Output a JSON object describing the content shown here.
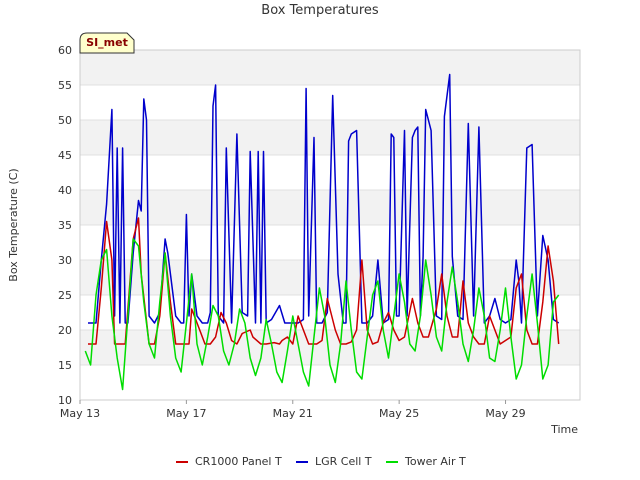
{
  "chart_data": {
    "type": "line",
    "title": "Box Temperatures",
    "xlabel": "Time",
    "ylabel": "Box Temperature (C)",
    "ylim": [
      10,
      60
    ],
    "yticks": [
      10,
      15,
      20,
      25,
      30,
      35,
      40,
      45,
      50,
      55,
      60
    ],
    "xlim": [
      13,
      31.8
    ],
    "xticks": [
      {
        "value": 13,
        "label": "May 13"
      },
      {
        "value": 17,
        "label": "May 17"
      },
      {
        "value": 21,
        "label": "May 21"
      },
      {
        "value": 25,
        "label": "May 25"
      },
      {
        "value": 29,
        "label": "May 29"
      }
    ],
    "grid": "horizontal bands",
    "legend_position": "bottom",
    "site_badge": "SI_met",
    "series": [
      {
        "name": "CR1000 Panel T",
        "color": "#cc0000",
        "x": [
          13.3,
          13.6,
          13.8,
          14.0,
          14.2,
          14.3,
          14.5,
          14.7,
          15.0,
          15.2,
          15.3,
          15.6,
          15.8,
          16.0,
          16.2,
          16.4,
          16.6,
          16.9,
          17.1,
          17.2,
          17.5,
          17.7,
          17.9,
          18.1,
          18.3,
          18.5,
          18.7,
          18.9,
          19.1,
          19.4,
          19.5,
          19.8,
          20.0,
          20.3,
          20.5,
          20.6,
          20.8,
          21.0,
          21.2,
          21.4,
          21.6,
          21.9,
          22.1,
          22.3,
          22.6,
          22.8,
          23.0,
          23.2,
          23.4,
          23.6,
          23.8,
          24.0,
          24.2,
          24.4,
          24.6,
          24.8,
          25.0,
          25.2,
          25.5,
          25.7,
          25.9,
          26.1,
          26.4,
          26.6,
          26.8,
          27.0,
          27.2,
          27.4,
          27.6,
          27.8,
          28.0,
          28.2,
          28.4,
          28.6,
          28.8,
          29.0,
          29.2,
          29.4,
          29.6,
          29.8,
          30.0,
          30.2,
          30.4,
          30.6,
          30.8,
          31.0
        ],
        "y": [
          18.0,
          18.0,
          26.0,
          35.5,
          30.0,
          18.0,
          18.0,
          18.0,
          33.0,
          36.0,
          28.0,
          18.0,
          18.0,
          22.0,
          31.0,
          24.0,
          18.0,
          18.0,
          18.0,
          23.0,
          20.0,
          18.0,
          18.0,
          19.0,
          22.5,
          21.0,
          18.5,
          18.0,
          19.5,
          20.0,
          19.0,
          18.0,
          18.0,
          18.2,
          18.0,
          18.5,
          19.0,
          18.0,
          22.0,
          20.0,
          18.0,
          18.0,
          18.5,
          24.5,
          20.0,
          18.0,
          18.0,
          18.3,
          20.0,
          30.0,
          20.0,
          18.0,
          18.3,
          21.0,
          22.5,
          20.0,
          18.5,
          19.0,
          24.5,
          21.0,
          19.0,
          19.0,
          23.0,
          28.0,
          22.0,
          19.0,
          19.0,
          27.0,
          21.0,
          19.0,
          18.0,
          18.0,
          22.0,
          20.0,
          18.0,
          18.5,
          19.0,
          26.0,
          28.0,
          20.0,
          18.0,
          18.0,
          24.0,
          32.0,
          27.0,
          18.0
        ]
      },
      {
        "name": "LGR Cell T",
        "color": "#0000cc",
        "x": [
          13.3,
          13.6,
          13.8,
          14.0,
          14.2,
          14.3,
          14.4,
          14.5,
          14.6,
          14.7,
          14.8,
          15.0,
          15.2,
          15.3,
          15.4,
          15.5,
          15.6,
          15.8,
          16.0,
          16.2,
          16.3,
          16.6,
          16.8,
          16.9,
          17.0,
          17.1,
          17.2,
          17.4,
          17.6,
          17.8,
          17.9,
          18.0,
          18.1,
          18.2,
          18.4,
          18.5,
          18.7,
          18.9,
          19.1,
          19.3,
          19.4,
          19.6,
          19.7,
          19.8,
          19.9,
          20.0,
          20.2,
          20.5,
          20.7,
          21.0,
          21.2,
          21.4,
          21.5,
          21.6,
          21.8,
          21.9,
          22.1,
          22.3,
          22.5,
          22.7,
          22.9,
          23.0,
          23.1,
          23.2,
          23.4,
          23.6,
          23.8,
          24.0,
          24.2,
          24.4,
          24.6,
          24.7,
          24.8,
          24.9,
          25.0,
          25.2,
          25.3,
          25.5,
          25.6,
          25.7,
          25.8,
          25.9,
          26.0,
          26.2,
          26.4,
          26.6,
          26.7,
          26.9,
          27.0,
          27.2,
          27.4,
          27.6,
          27.8,
          28.0,
          28.2,
          28.4,
          28.6,
          28.8,
          29.0,
          29.2,
          29.4,
          29.5,
          29.6,
          29.8,
          30.0,
          30.2,
          30.4,
          30.6,
          30.8,
          31.0
        ],
        "y": [
          21.0,
          21.0,
          30.0,
          38.0,
          51.5,
          22.0,
          46.0,
          21.0,
          46.0,
          21.0,
          21.0,
          31.0,
          38.5,
          37.0,
          53.0,
          50.0,
          22.0,
          21.0,
          22.5,
          33.0,
          31.0,
          22.0,
          21.0,
          21.0,
          36.5,
          22.0,
          28.0,
          22.0,
          21.0,
          21.0,
          22.5,
          52.0,
          55.0,
          22.0,
          21.0,
          46.0,
          21.0,
          48.0,
          22.5,
          22.0,
          45.5,
          21.0,
          45.5,
          21.0,
          45.5,
          21.0,
          21.5,
          23.5,
          21.0,
          21.0,
          21.0,
          21.5,
          54.5,
          22.0,
          47.5,
          21.0,
          21.0,
          22.5,
          53.5,
          28.0,
          21.0,
          21.0,
          47.0,
          48.0,
          48.5,
          21.0,
          21.0,
          22.0,
          30.0,
          21.0,
          21.5,
          48.0,
          47.5,
          22.0,
          22.0,
          48.5,
          22.0,
          47.5,
          48.5,
          49.0,
          22.0,
          30.5,
          51.5,
          48.5,
          22.0,
          21.5,
          50.5,
          56.5,
          30.5,
          22.0,
          21.5,
          49.5,
          22.0,
          49.0,
          21.0,
          22.0,
          24.5,
          21.5,
          21.0,
          21.5,
          30.0,
          27.0,
          21.0,
          46.0,
          46.5,
          22.0,
          33.5,
          30.0,
          21.5,
          21.0
        ]
      },
      {
        "name": "Tower Air T",
        "color": "#00dd00",
        "x": [
          13.2,
          13.4,
          13.6,
          13.8,
          14.0,
          14.2,
          14.4,
          14.6,
          14.8,
          15.0,
          15.2,
          15.4,
          15.6,
          15.8,
          16.0,
          16.2,
          16.4,
          16.6,
          16.8,
          17.0,
          17.2,
          17.4,
          17.6,
          17.8,
          18.0,
          18.2,
          18.4,
          18.6,
          18.8,
          19.0,
          19.2,
          19.4,
          19.6,
          19.8,
          20.0,
          20.2,
          20.4,
          20.6,
          20.8,
          21.0,
          21.2,
          21.4,
          21.6,
          21.8,
          22.0,
          22.2,
          22.4,
          22.6,
          22.8,
          23.0,
          23.2,
          23.4,
          23.6,
          23.8,
          24.0,
          24.2,
          24.4,
          24.6,
          24.8,
          25.0,
          25.2,
          25.4,
          25.6,
          25.8,
          26.0,
          26.2,
          26.4,
          26.6,
          26.8,
          27.0,
          27.2,
          27.4,
          27.6,
          27.8,
          28.0,
          28.2,
          28.4,
          28.6,
          28.8,
          29.0,
          29.2,
          29.4,
          29.6,
          29.8,
          30.0,
          30.2,
          30.4,
          30.6,
          30.8,
          31.0
        ],
        "y": [
          17.0,
          15.0,
          25.0,
          30.0,
          31.5,
          22.0,
          16.0,
          11.5,
          22.0,
          33.0,
          32.0,
          24.0,
          18.0,
          16.0,
          24.0,
          31.0,
          22.0,
          16.0,
          14.0,
          21.0,
          28.0,
          18.0,
          15.0,
          19.0,
          23.5,
          22.0,
          17.0,
          15.0,
          18.0,
          23.0,
          21.0,
          16.0,
          13.5,
          16.0,
          21.5,
          18.0,
          14.0,
          12.5,
          17.0,
          22.0,
          18.0,
          14.0,
          12.0,
          19.0,
          26.0,
          22.0,
          15.0,
          12.5,
          18.0,
          27.0,
          20.0,
          14.0,
          13.0,
          19.0,
          25.0,
          27.0,
          20.0,
          16.0,
          22.0,
          28.0,
          24.0,
          18.0,
          17.0,
          22.0,
          30.0,
          25.0,
          19.0,
          17.0,
          24.0,
          29.0,
          24.0,
          18.0,
          15.5,
          20.0,
          26.0,
          22.0,
          16.0,
          15.5,
          20.0,
          26.0,
          19.0,
          13.0,
          15.0,
          22.0,
          28.0,
          21.0,
          13.0,
          15.0,
          24.0,
          25.0
        ]
      }
    ]
  }
}
